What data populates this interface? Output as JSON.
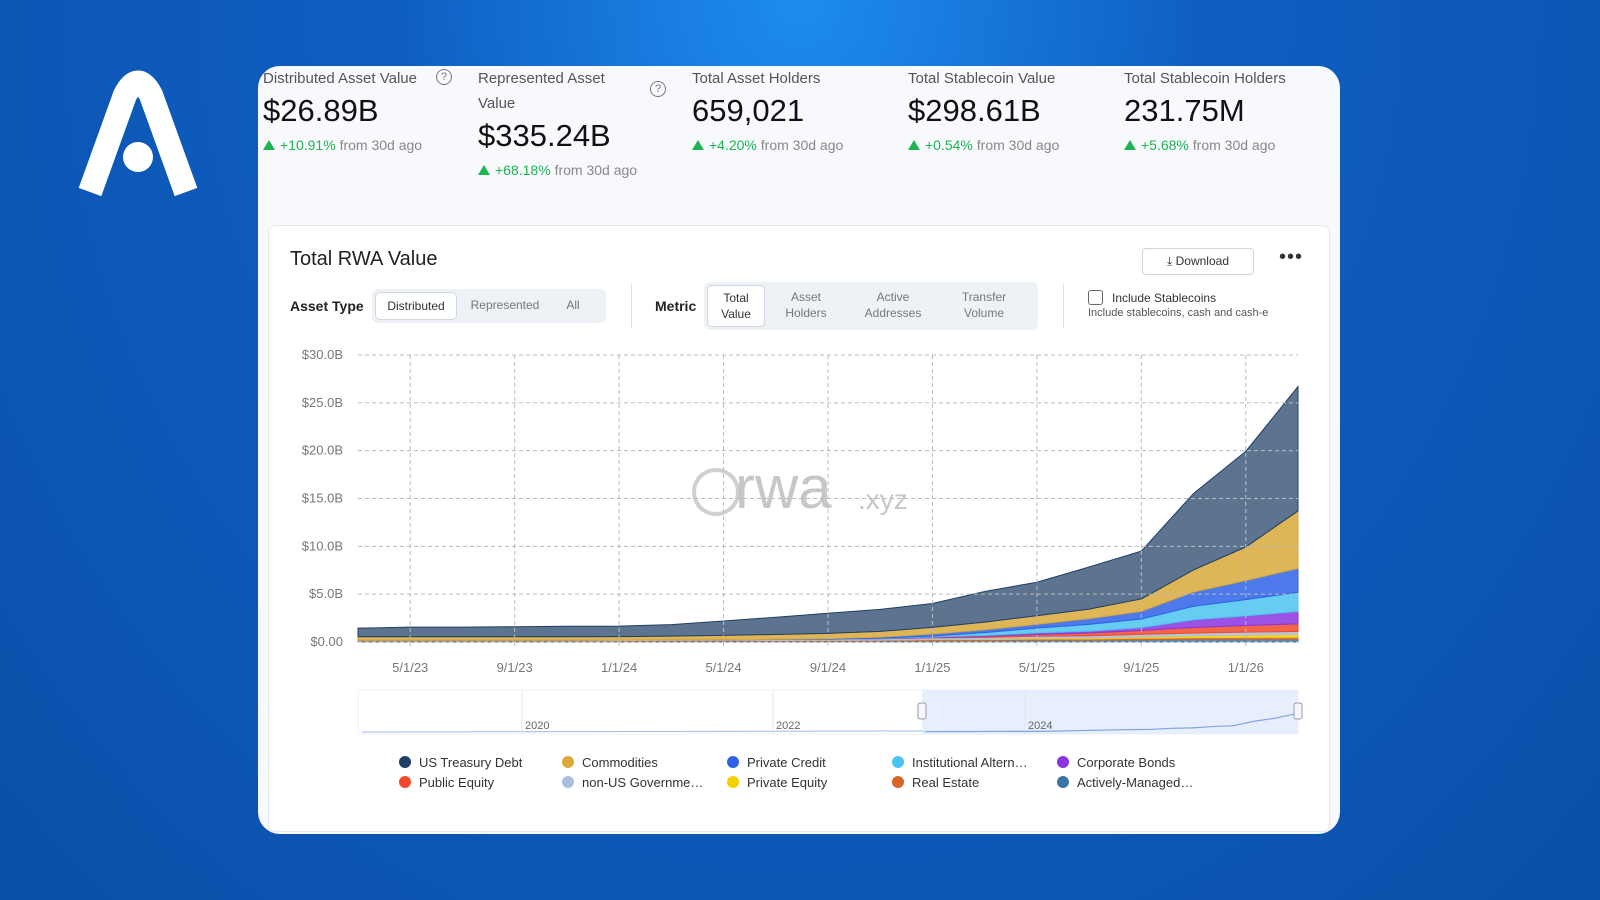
{
  "stats": [
    {
      "label": "Distributed Asset Value",
      "value": "$26.89B",
      "change": "+10.91%",
      "note": "from 30d ago"
    },
    {
      "label": "Represented Asset Value",
      "value": "$335.24B",
      "change": "+68.18%",
      "note": "from 30d ago"
    },
    {
      "label": "Total Asset Holders",
      "value": "659,021",
      "change": "+4.20%",
      "note": "from 30d ago"
    },
    {
      "label": "Total Stablecoin Value",
      "value": "$298.61B",
      "change": "+0.54%",
      "note": "from 30d ago"
    },
    {
      "label": "Total Stablecoin Holders",
      "value": "231.75M",
      "change": "+5.68%",
      "note": "from 30d ago"
    }
  ],
  "panel": {
    "download": "Download",
    "asset_type_label": "Asset Type",
    "asset_types": [
      "Distributed",
      "Represented",
      "All"
    ],
    "metric_label": "Metric",
    "metrics": [
      "Total Value",
      "Asset Holders",
      "Active Addresses",
      "Transfer Volume"
    ],
    "stablecoins_label": "Include Stablecoins",
    "stablecoins_note": "Include stablecoins, cash and cash-e"
  },
  "chart_data": {
    "type": "stacked_area",
    "title": "Total RWA Value",
    "watermark": "rwa",
    "watermark_suffix": ".xyz",
    "x": [
      "3/1/23",
      "5/1/23",
      "7/1/23",
      "9/1/23",
      "11/1/23",
      "1/1/24",
      "3/1/24",
      "5/1/24",
      "7/1/24",
      "9/1/24",
      "11/1/24",
      "1/1/25",
      "3/1/25",
      "5/1/25",
      "7/1/25",
      "9/1/25",
      "11/1/25",
      "1/1/26",
      "3/1/26"
    ],
    "xticks": [
      "5/1/23",
      "9/1/23",
      "1/1/24",
      "5/1/24",
      "9/1/24",
      "1/1/25",
      "5/1/25",
      "9/1/25",
      "1/1/26"
    ],
    "ylim": [
      0,
      30
    ],
    "yticks": [
      {
        "value": 0,
        "label": "$0.00"
      },
      {
        "value": 5,
        "label": "$5.0B"
      },
      {
        "value": 10,
        "label": "$10.0B"
      },
      {
        "value": 15,
        "label": "$15.0B"
      },
      {
        "value": 20,
        "label": "$20.0B"
      },
      {
        "value": 25,
        "label": "$25.0B"
      },
      {
        "value": 30,
        "label": "$30.0B"
      }
    ],
    "grid": true,
    "navigator_labels": [
      "2020",
      "2022",
      "2024"
    ],
    "series": [
      {
        "name": "US Treasury Debt",
        "color": "#1f3f66",
        "values": [
          0.9,
          1.0,
          1.0,
          1.05,
          1.1,
          1.1,
          1.2,
          1.5,
          1.8,
          2.1,
          2.3,
          2.5,
          3.2,
          3.5,
          4.4,
          5.0,
          8.0,
          10.0,
          13.0
        ]
      },
      {
        "name": "Commodities",
        "color": "#d9a93a",
        "values": [
          0.35,
          0.35,
          0.35,
          0.35,
          0.35,
          0.35,
          0.4,
          0.45,
          0.5,
          0.55,
          0.6,
          0.7,
          0.8,
          0.9,
          1.0,
          1.3,
          2.3,
          3.5,
          6.0
        ]
      },
      {
        "name": "Private Credit",
        "color": "#2f62e6",
        "values": [
          0,
          0,
          0,
          0,
          0,
          0,
          0,
          0,
          0.02,
          0.05,
          0.1,
          0.2,
          0.3,
          0.4,
          0.6,
          0.8,
          1.5,
          2.0,
          2.5
        ]
      },
      {
        "name": "Institutional Altern…",
        "color": "#4cc3ef",
        "values": [
          0,
          0,
          0,
          0,
          0,
          0,
          0,
          0,
          0,
          0,
          0.05,
          0.1,
          0.3,
          0.5,
          0.7,
          0.9,
          1.4,
          1.7,
          2.0
        ]
      },
      {
        "name": "Corporate Bonds",
        "color": "#8b35e0",
        "values": [
          0,
          0,
          0,
          0,
          0,
          0,
          0,
          0,
          0,
          0,
          0,
          0.05,
          0.1,
          0.15,
          0.2,
          0.3,
          0.8,
          1.0,
          1.3
        ]
      },
      {
        "name": "Public Equity",
        "color": "#f04a2a",
        "values": [
          0,
          0,
          0,
          0,
          0,
          0,
          0,
          0,
          0,
          0,
          0.02,
          0.05,
          0.1,
          0.2,
          0.3,
          0.4,
          0.6,
          0.7,
          0.8
        ]
      },
      {
        "name": "non-US Governme…",
        "color": "#a9bedf",
        "values": [
          0.05,
          0.05,
          0.05,
          0.05,
          0.05,
          0.06,
          0.06,
          0.08,
          0.1,
          0.12,
          0.14,
          0.16,
          0.18,
          0.2,
          0.22,
          0.25,
          0.28,
          0.3,
          0.3
        ]
      },
      {
        "name": "Private Equity",
        "color": "#f5d000",
        "values": [
          0,
          0,
          0,
          0,
          0,
          0,
          0,
          0,
          0,
          0,
          0,
          0.02,
          0.05,
          0.08,
          0.1,
          0.15,
          0.2,
          0.25,
          0.3
        ]
      },
      {
        "name": "Real Estate",
        "color": "#d9652a",
        "values": [
          0.05,
          0.05,
          0.05,
          0.05,
          0.05,
          0.05,
          0.06,
          0.06,
          0.07,
          0.08,
          0.08,
          0.1,
          0.1,
          0.12,
          0.12,
          0.15,
          0.15,
          0.18,
          0.2
        ]
      },
      {
        "name": "Actively-Managed…",
        "color": "#3d74a6",
        "values": [
          0.1,
          0.1,
          0.1,
          0.1,
          0.1,
          0.1,
          0.1,
          0.1,
          0.1,
          0.1,
          0.12,
          0.15,
          0.15,
          0.2,
          0.2,
          0.25,
          0.3,
          0.3,
          0.3
        ]
      }
    ]
  }
}
